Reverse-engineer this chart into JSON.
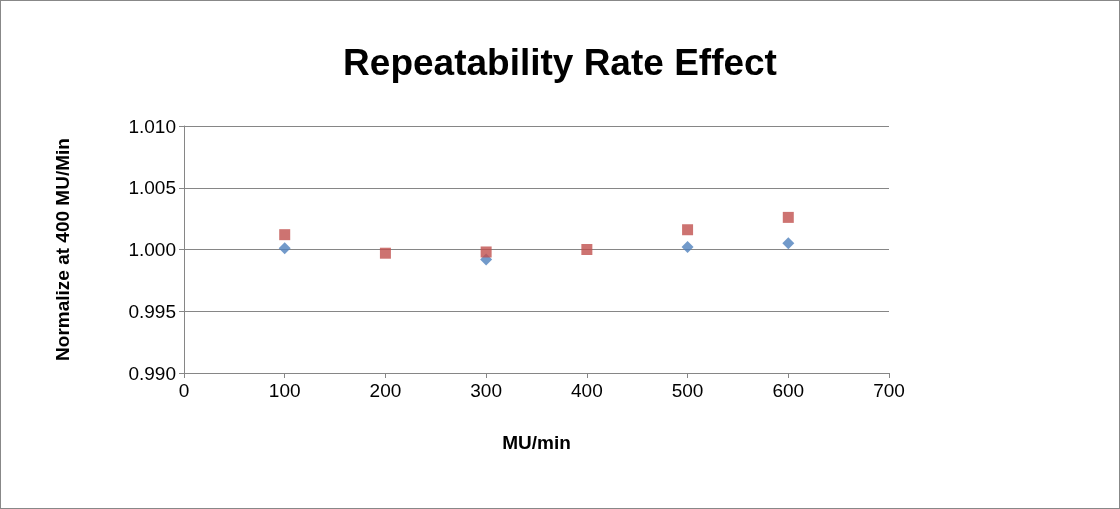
{
  "chart_data": {
    "type": "scatter",
    "title": "Repeatability Rate Effect",
    "xlabel": "MU/min",
    "ylabel": "Normalize at 400 MU/Min",
    "x": [
      100,
      200,
      300,
      400,
      500,
      600
    ],
    "series": [
      {
        "color": "#4f81bd",
        "marker": "diamond",
        "values": [
          1.0001,
          null,
          0.9992,
          null,
          1.0002,
          1.0005
        ]
      },
      {
        "color": "#c0504d",
        "marker": "square",
        "values": [
          1.0012,
          0.9997,
          0.9998,
          1.0,
          1.0016,
          1.0026
        ]
      }
    ],
    "xlim": [
      0,
      700
    ],
    "xticks": [
      0,
      100,
      200,
      300,
      400,
      500,
      600,
      700
    ],
    "ylim": [
      0.99,
      1.01
    ],
    "yticks": [
      {
        "value": 0.99,
        "label": "0.990"
      },
      {
        "value": 0.995,
        "label": "0.995"
      },
      {
        "value": 1.0,
        "label": "1.000"
      },
      {
        "value": 1.005,
        "label": "1.005"
      },
      {
        "value": 1.01,
        "label": "1.010"
      }
    ],
    "grid": "y"
  }
}
